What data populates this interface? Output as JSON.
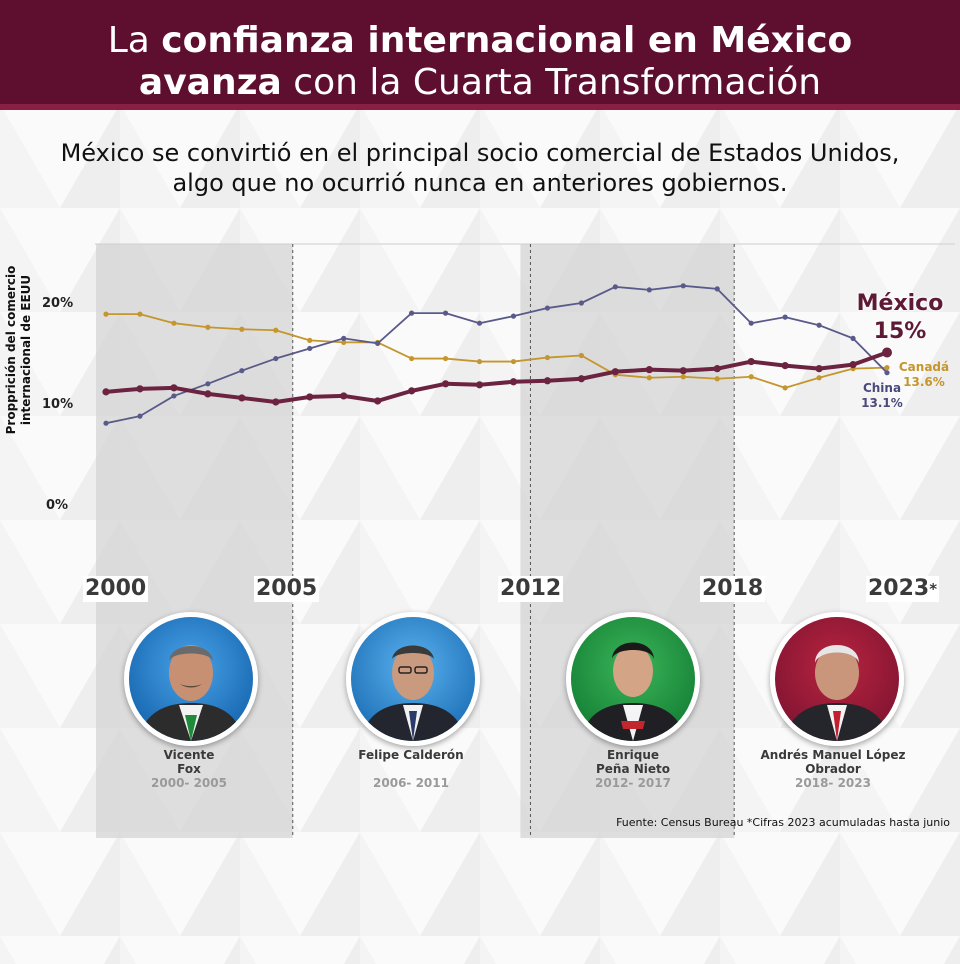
{
  "header": {
    "line1_pre": "La ",
    "line1_bold": "confianza internacional en México",
    "line2_bold": "avanza",
    "line2_rest": " con la Cuarta Transformación"
  },
  "subtitle": "México se convirtió en el principal socio comercial de Estados Unidos, algo que no ocurrió nunca en anteriores gobiernos.",
  "colors": {
    "brand": "#5e0f2f",
    "mexico": "#6b2340",
    "china": "#5a5a8a",
    "canada": "#c4962d",
    "shade": "#d4d4d4"
  },
  "chart_data": {
    "type": "line",
    "ylabel": "Propprición del comercio internacional de EEUU",
    "yticks": [
      "20%",
      "10%",
      "0%"
    ],
    "ylim": [
      0,
      25
    ],
    "x": [
      2000,
      2001,
      2002,
      2003,
      2004,
      2005,
      2006,
      2007,
      2008,
      2009,
      2010,
      2011,
      2012,
      2013,
      2014,
      2015,
      2016,
      2017,
      2018,
      2019,
      2020,
      2021,
      2022,
      2023
    ],
    "xlabels": [
      {
        "value": 2000,
        "label": "2000"
      },
      {
        "value": 2005,
        "label": "2005"
      },
      {
        "value": 2012,
        "label": "2012"
      },
      {
        "value": 2018,
        "label": "2018"
      },
      {
        "value": 2023,
        "label": "2023",
        "mark": "*"
      }
    ],
    "shaded_ranges": [
      [
        2000,
        2005.5
      ],
      [
        2012.5,
        2018.5
      ]
    ],
    "dividers": [
      2005.5,
      2012.5,
      2018.5
    ],
    "series": [
      {
        "name": "México",
        "key": "mexico",
        "end_label": "15%",
        "values": [
          11.2,
          11.5,
          11.6,
          11.0,
          10.6,
          10.2,
          10.7,
          10.8,
          10.3,
          11.3,
          12.0,
          11.9,
          12.2,
          12.3,
          12.5,
          13.2,
          13.4,
          13.3,
          13.5,
          14.2,
          13.8,
          13.5,
          13.9,
          15.1
        ]
      },
      {
        "name": "China",
        "key": "china",
        "end_label": "13.1%",
        "values": [
          8.1,
          8.8,
          10.8,
          12.0,
          13.3,
          14.5,
          15.5,
          16.5,
          16.0,
          19.0,
          19.0,
          18.0,
          18.7,
          19.5,
          20.0,
          21.6,
          21.3,
          21.7,
          21.4,
          18.0,
          18.6,
          17.8,
          16.5,
          13.1
        ]
      },
      {
        "name": "Canadá",
        "key": "canada",
        "end_label": "13.6%",
        "values": [
          18.9,
          18.9,
          18.0,
          17.6,
          17.4,
          17.3,
          16.3,
          16.1,
          16.1,
          14.5,
          14.5,
          14.2,
          14.2,
          14.6,
          14.8,
          12.9,
          12.6,
          12.7,
          12.5,
          12.7,
          11.6,
          12.6,
          13.5,
          13.6
        ]
      }
    ]
  },
  "presidents": [
    {
      "name1": "Vicente",
      "name2": "Fox",
      "years": "2000- 2005",
      "palette": "fox"
    },
    {
      "name1": "Felipe Calderón",
      "name2": "",
      "years": "2006- 2011",
      "palette": "calderon"
    },
    {
      "name1": "Enrique",
      "name2": "Peña Nieto",
      "years": "2012- 2017",
      "palette": "pena"
    },
    {
      "name1": "Andrés Manuel López",
      "name2": "Obrador",
      "years": "2018- 2023",
      "palette": "amlo"
    }
  ],
  "source": "Fuente: Census Bureau *Cifras 2023 acumuladas hasta junio"
}
